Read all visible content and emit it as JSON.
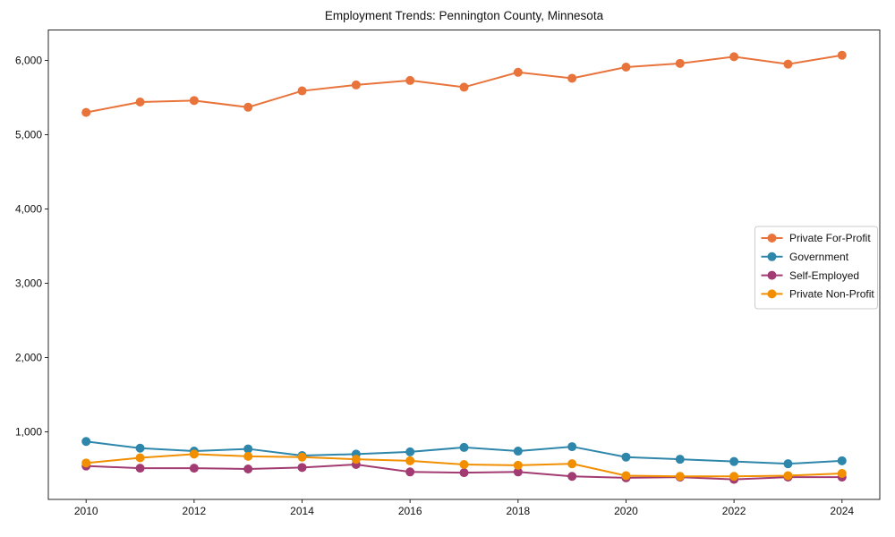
{
  "chart_data": {
    "type": "line",
    "title": "Employment Trends: Pennington County, Minnesota",
    "xlabel": "",
    "ylabel": "",
    "x": [
      2010,
      2011,
      2012,
      2013,
      2014,
      2015,
      2016,
      2017,
      2018,
      2019,
      2020,
      2021,
      2022,
      2023,
      2024
    ],
    "series": [
      {
        "name": "Private For-Profit",
        "color": "#E8743B",
        "values": [
          5300,
          5440,
          5460,
          5370,
          5590,
          5670,
          5730,
          5640,
          5840,
          5760,
          5910,
          5960,
          6050,
          5950,
          6070
        ]
      },
      {
        "name": "Government",
        "color": "#2E86AB",
        "values": [
          870,
          780,
          740,
          770,
          680,
          700,
          730,
          790,
          740,
          800,
          660,
          630,
          600,
          570,
          610
        ]
      },
      {
        "name": "Self-Employed",
        "color": "#A23B72",
        "values": [
          540,
          510,
          510,
          500,
          520,
          560,
          460,
          450,
          460,
          400,
          380,
          390,
          360,
          390,
          390
        ]
      },
      {
        "name": "Private Non-Profit",
        "color": "#F18F01",
        "values": [
          580,
          650,
          700,
          670,
          660,
          630,
          610,
          560,
          550,
          570,
          410,
          400,
          400,
          410,
          440
        ]
      }
    ],
    "xticks": [
      {
        "value": 2010,
        "label": "2010"
      },
      {
        "value": 2012,
        "label": "2012"
      },
      {
        "value": 2014,
        "label": "2014"
      },
      {
        "value": 2016,
        "label": "2016"
      },
      {
        "value": 2018,
        "label": "2018"
      },
      {
        "value": 2020,
        "label": "2020"
      },
      {
        "value": 2022,
        "label": "2022"
      },
      {
        "value": 2024,
        "label": "2024"
      }
    ],
    "yticks": [
      {
        "value": 1000,
        "label": "1,000"
      },
      {
        "value": 2000,
        "label": "2,000"
      },
      {
        "value": 3000,
        "label": "3,000"
      },
      {
        "value": 4000,
        "label": "4,000"
      },
      {
        "value": 5000,
        "label": "5,000"
      },
      {
        "value": 6000,
        "label": "6,000"
      }
    ],
    "xlim": [
      2009.3,
      2024.7
    ],
    "ylim": [
      90,
      6410
    ],
    "grid": false,
    "legend_position": "center-right",
    "background_color": "#ffffff",
    "axis_color": "#262626"
  }
}
